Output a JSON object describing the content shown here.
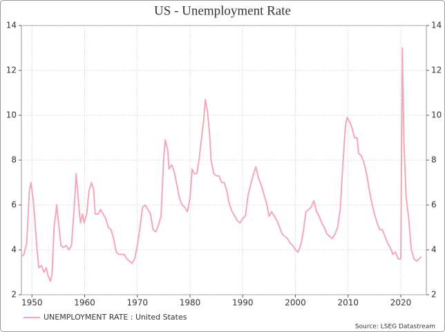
{
  "chart_data": {
    "type": "line",
    "title": "US - Unemployment Rate",
    "source": "Source: LSEG Datastream",
    "x": [
      1948.0,
      1948.5,
      1949.0,
      1949.5,
      1949.8,
      1950.2,
      1950.5,
      1950.9,
      1951.3,
      1951.8,
      1952.3,
      1952.7,
      1953.0,
      1953.5,
      1953.8,
      1954.2,
      1954.7,
      1955.0,
      1955.5,
      1956.0,
      1956.5,
      1957.0,
      1957.5,
      1958.0,
      1958.4,
      1958.8,
      1959.2,
      1959.6,
      1959.9,
      1960.4,
      1960.8,
      1961.3,
      1961.7,
      1962.0,
      1962.6,
      1963.0,
      1963.5,
      1964.0,
      1964.5,
      1965.0,
      1965.5,
      1966.0,
      1966.5,
      1967.0,
      1967.5,
      1968.0,
      1968.5,
      1969.0,
      1969.5,
      1970.0,
      1970.5,
      1971.0,
      1971.5,
      1972.0,
      1972.5,
      1973.0,
      1973.5,
      1974.0,
      1974.5,
      1975.0,
      1975.3,
      1975.8,
      1976.0,
      1976.5,
      1977.0,
      1977.5,
      1978.0,
      1978.5,
      1979.0,
      1979.5,
      1980.0,
      1980.4,
      1980.8,
      1981.3,
      1981.7,
      1982.2,
      1982.6,
      1982.9,
      1983.3,
      1983.7,
      1984.0,
      1984.5,
      1985.0,
      1985.5,
      1986.0,
      1986.5,
      1987.0,
      1987.5,
      1988.0,
      1988.5,
      1989.0,
      1989.5,
      1990.0,
      1990.5,
      1991.0,
      1991.5,
      1992.2,
      1992.5,
      1993.0,
      1993.5,
      1994.0,
      1994.6,
      1995.0,
      1995.5,
      1996.0,
      1996.5,
      1997.0,
      1997.5,
      1998.0,
      1998.5,
      1999.0,
      1999.5,
      2000.0,
      2000.5,
      2001.0,
      2001.5,
      2002.0,
      2002.5,
      2003.0,
      2003.5,
      2004.0,
      2004.5,
      2005.0,
      2005.5,
      2006.0,
      2006.5,
      2007.0,
      2007.5,
      2008.0,
      2008.5,
      2009.0,
      2009.5,
      2009.8,
      2010.3,
      2010.8,
      2011.2,
      2011.7,
      2012.0,
      2012.5,
      2013.0,
      2013.5,
      2014.0,
      2014.5,
      2015.0,
      2015.5,
      2016.0,
      2016.5,
      2017.0,
      2017.5,
      2018.0,
      2018.5,
      2019.0,
      2019.5,
      2020.0,
      2020.3,
      2020.6,
      2021.0,
      2021.5,
      2022.0,
      2022.5,
      2023.0,
      2023.5,
      2023.9
    ],
    "series": [
      {
        "name": "UNEMPLOYMENT RATE : United States",
        "color": "#f4a7b9",
        "values": [
          3.7,
          3.8,
          4.3,
          6.6,
          7.0,
          6.3,
          5.5,
          4.2,
          3.2,
          3.3,
          3.0,
          3.2,
          2.9,
          2.6,
          2.9,
          5.0,
          6.0,
          5.3,
          4.2,
          4.1,
          4.2,
          4.0,
          4.2,
          5.8,
          7.4,
          6.2,
          5.2,
          5.6,
          5.2,
          5.6,
          6.6,
          7.0,
          6.7,
          5.6,
          5.6,
          5.8,
          5.6,
          5.4,
          5.0,
          4.9,
          4.5,
          3.9,
          3.8,
          3.8,
          3.8,
          3.6,
          3.5,
          3.4,
          3.6,
          4.2,
          5.0,
          5.9,
          6.0,
          5.8,
          5.6,
          4.9,
          4.8,
          5.1,
          5.5,
          8.1,
          8.9,
          8.4,
          7.6,
          7.8,
          7.5,
          6.9,
          6.3,
          6.0,
          5.9,
          5.7,
          6.3,
          7.6,
          7.4,
          7.4,
          8.0,
          9.0,
          9.8,
          10.7,
          10.2,
          9.2,
          8.0,
          7.4,
          7.3,
          7.3,
          7.0,
          7.0,
          6.6,
          6.0,
          5.7,
          5.5,
          5.3,
          5.2,
          5.4,
          5.5,
          6.4,
          6.9,
          7.5,
          7.7,
          7.2,
          6.9,
          6.5,
          6.0,
          5.5,
          5.7,
          5.5,
          5.3,
          5.0,
          4.7,
          4.6,
          4.5,
          4.3,
          4.2,
          4.0,
          3.9,
          4.2,
          4.8,
          5.7,
          5.8,
          5.9,
          6.2,
          5.7,
          5.5,
          5.2,
          5.0,
          4.7,
          4.6,
          4.5,
          4.7,
          5.0,
          5.8,
          7.8,
          9.5,
          9.9,
          9.7,
          9.4,
          9.0,
          9.0,
          8.3,
          8.2,
          7.9,
          7.4,
          6.7,
          6.1,
          5.6,
          5.2,
          4.9,
          4.9,
          4.6,
          4.3,
          4.1,
          3.8,
          3.9,
          3.6,
          3.6,
          13.0,
          8.8,
          6.4,
          5.4,
          4.0,
          3.6,
          3.5,
          3.6,
          3.7
        ]
      }
    ],
    "xlim": [
      1948,
      2024.85
    ],
    "xticks": [
      1950,
      1960,
      1970,
      1980,
      1990,
      2000,
      2010,
      2020
    ],
    "ylim": [
      2,
      14
    ],
    "yticks": [
      2,
      4,
      6,
      8,
      10,
      12,
      14
    ],
    "grid": true
  }
}
